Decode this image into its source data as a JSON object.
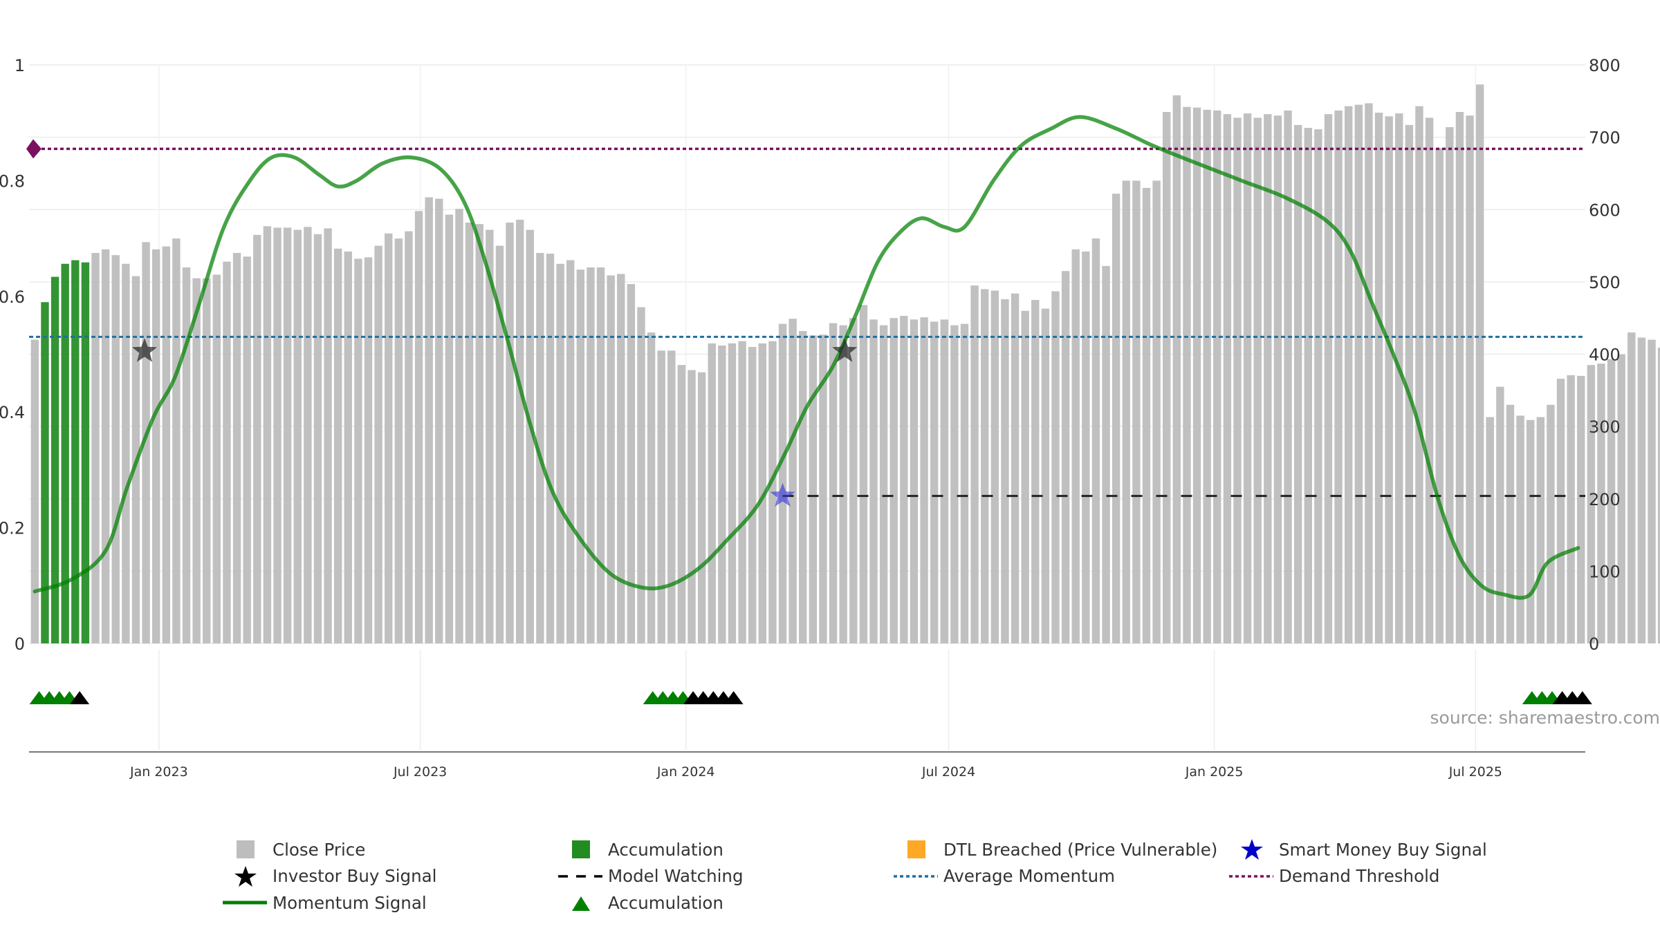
{
  "chart_data": {
    "type": "bar",
    "x_start": "2022-10-07",
    "x_interval_days": 7,
    "xlim": [
      "2022-10-03",
      "2025-09-15"
    ],
    "x_ticks": [
      "Jan 2023",
      "Jul 2023",
      "Jan 2024",
      "Jul 2024",
      "Jan 2025",
      "Jul 2025"
    ],
    "x_tick_dates": [
      "2023-01-01",
      "2023-07-01",
      "2024-01-01",
      "2024-07-01",
      "2025-01-01",
      "2025-07-01"
    ],
    "y_left": {
      "ylim": [
        0,
        1
      ],
      "ticks": [
        "0",
        "0.2",
        "0.4",
        "0.6",
        "0.8",
        "1"
      ]
    },
    "y_right": {
      "ylim": [
        0,
        800
      ],
      "ticks": [
        "0",
        "100",
        "200",
        "300",
        "400",
        "500",
        "600",
        "700",
        "800"
      ]
    },
    "grid": true,
    "close_price": [
      420,
      472,
      507,
      525,
      530,
      527,
      540,
      545,
      537,
      525,
      508,
      555,
      545,
      549,
      560,
      520,
      505,
      505,
      510,
      528,
      540,
      535,
      565,
      577,
      575,
      575,
      572,
      576,
      566,
      574,
      546,
      542,
      532,
      534,
      550,
      567,
      560,
      570,
      598,
      617,
      615,
      593,
      601,
      582,
      580,
      572,
      550,
      582,
      586,
      572,
      540,
      539,
      525,
      530,
      517,
      520,
      520,
      509,
      511,
      497,
      465,
      430,
      405,
      405,
      385,
      378,
      375,
      415,
      412,
      415,
      418,
      410,
      415,
      418,
      442,
      449,
      432,
      426,
      427,
      443,
      440,
      450,
      468,
      448,
      440,
      450,
      453,
      448,
      451,
      445,
      448,
      440,
      442,
      495,
      490,
      488,
      476,
      484,
      460,
      475,
      463,
      487,
      515,
      545,
      542,
      560,
      522,
      622,
      640,
      640,
      630,
      640,
      735,
      758,
      742,
      741,
      738,
      737,
      732,
      727,
      733,
      727,
      732,
      730,
      737,
      717,
      713,
      711,
      732,
      737,
      743,
      745,
      747,
      734,
      729,
      733,
      717,
      743,
      727,
      685,
      714,
      735,
      730,
      773,
      313,
      355,
      330,
      315,
      309,
      313,
      330,
      366,
      371,
      370,
      385,
      387,
      393,
      400,
      430,
      423,
      420,
      409,
      398,
      384,
      360
    ],
    "bar_classes": [
      "C",
      "A",
      "A",
      "A",
      "A",
      "A",
      "C",
      "C",
      "C",
      "C",
      "C",
      "C",
      "C",
      "C",
      "C",
      "C",
      "C",
      "C",
      "C",
      "C",
      "C",
      "C",
      "C",
      "C",
      "C",
      "C",
      "C",
      "C",
      "C",
      "C",
      "C",
      "C",
      "C",
      "C",
      "C",
      "C",
      "C",
      "C",
      "C",
      "C",
      "C",
      "C",
      "C",
      "C",
      "C",
      "C",
      "C",
      "C",
      "C",
      "C",
      "C",
      "C",
      "C",
      "C",
      "C",
      "C",
      "C",
      "C",
      "C",
      "C",
      "C",
      "C",
      "C",
      "C",
      "C",
      "C",
      "C",
      "C",
      "C",
      "C",
      "C",
      "C",
      "C",
      "C",
      "C",
      "C",
      "C",
      "C",
      "C",
      "C",
      "C",
      "C",
      "C",
      "C",
      "C",
      "C",
      "C",
      "C",
      "C",
      "C",
      "C",
      "C",
      "C",
      "C",
      "C",
      "C",
      "C",
      "C",
      "C",
      "C",
      "C",
      "C",
      "C",
      "C",
      "C",
      "C",
      "C",
      "C",
      "C",
      "C",
      "C",
      "C",
      "C",
      "C",
      "C",
      "C",
      "C",
      "C",
      "C",
      "C",
      "C",
      "C",
      "C",
      "C",
      "C",
      "C",
      "C",
      "C",
      "C",
      "C",
      "C",
      "C",
      "C",
      "C",
      "C",
      "C",
      "C",
      "C",
      "C",
      "C",
      "C",
      "C",
      "C",
      "C",
      "C",
      "C",
      "C",
      "C",
      "C",
      "C",
      "C",
      "C",
      "C",
      "C",
      "C",
      "C",
      "C",
      "C",
      "C",
      "C",
      "C",
      "C",
      "C",
      "C",
      "C",
      "C",
      "C",
      "C"
    ],
    "momentum_points": [
      {
        "date": "2022-10-07",
        "value": 0.09
      },
      {
        "date": "2022-11-01",
        "value": 0.11
      },
      {
        "date": "2022-11-25",
        "value": 0.16
      },
      {
        "date": "2022-12-10",
        "value": 0.27
      },
      {
        "date": "2022-12-28",
        "value": 0.39
      },
      {
        "date": "2023-01-12",
        "value": 0.46
      },
      {
        "date": "2023-01-28",
        "value": 0.58
      },
      {
        "date": "2023-02-15",
        "value": 0.72
      },
      {
        "date": "2023-03-05",
        "value": 0.8
      },
      {
        "date": "2023-03-20",
        "value": 0.84
      },
      {
        "date": "2023-04-05",
        "value": 0.84
      },
      {
        "date": "2023-04-22",
        "value": 0.81
      },
      {
        "date": "2023-05-05",
        "value": 0.79
      },
      {
        "date": "2023-05-18",
        "value": 0.8
      },
      {
        "date": "2023-06-05",
        "value": 0.83
      },
      {
        "date": "2023-06-25",
        "value": 0.84
      },
      {
        "date": "2023-07-15",
        "value": 0.82
      },
      {
        "date": "2023-08-01",
        "value": 0.76
      },
      {
        "date": "2023-08-15",
        "value": 0.66
      },
      {
        "date": "2023-08-31",
        "value": 0.52
      },
      {
        "date": "2023-09-15",
        "value": 0.38
      },
      {
        "date": "2023-10-01",
        "value": 0.26
      },
      {
        "date": "2023-10-20",
        "value": 0.18
      },
      {
        "date": "2023-11-10",
        "value": 0.12
      },
      {
        "date": "2023-12-01",
        "value": 0.097
      },
      {
        "date": "2023-12-20",
        "value": 0.1
      },
      {
        "date": "2024-01-10",
        "value": 0.13
      },
      {
        "date": "2024-01-30",
        "value": 0.18
      },
      {
        "date": "2024-02-20",
        "value": 0.24
      },
      {
        "date": "2024-03-10",
        "value": 0.33
      },
      {
        "date": "2024-03-25",
        "value": 0.41
      },
      {
        "date": "2024-04-12",
        "value": 0.48
      },
      {
        "date": "2024-04-28",
        "value": 0.57
      },
      {
        "date": "2024-05-13",
        "value": 0.66
      },
      {
        "date": "2024-05-28",
        "value": 0.71
      },
      {
        "date": "2024-06-12",
        "value": 0.735
      },
      {
        "date": "2024-06-28",
        "value": 0.72
      },
      {
        "date": "2024-07-12",
        "value": 0.72
      },
      {
        "date": "2024-08-01",
        "value": 0.8
      },
      {
        "date": "2024-08-20",
        "value": 0.86
      },
      {
        "date": "2024-09-10",
        "value": 0.89
      },
      {
        "date": "2024-09-30",
        "value": 0.91
      },
      {
        "date": "2024-10-25",
        "value": 0.89
      },
      {
        "date": "2024-11-20",
        "value": 0.86
      },
      {
        "date": "2024-12-20",
        "value": 0.83
      },
      {
        "date": "2025-01-20",
        "value": 0.8
      },
      {
        "date": "2025-02-20",
        "value": 0.77
      },
      {
        "date": "2025-03-20",
        "value": 0.73
      },
      {
        "date": "2025-04-05",
        "value": 0.68
      },
      {
        "date": "2025-04-20",
        "value": 0.59
      },
      {
        "date": "2025-05-05",
        "value": 0.5
      },
      {
        "date": "2025-05-20",
        "value": 0.4
      },
      {
        "date": "2025-06-05",
        "value": 0.25
      },
      {
        "date": "2025-06-20",
        "value": 0.15
      },
      {
        "date": "2025-07-05",
        "value": 0.1
      },
      {
        "date": "2025-07-20",
        "value": 0.085
      },
      {
        "date": "2025-08-07",
        "value": 0.083
      },
      {
        "date": "2025-08-20",
        "value": 0.14
      },
      {
        "date": "2025-09-10",
        "value": 0.165
      }
    ],
    "average_momentum": 0.53,
    "demand_threshold": 0.855,
    "model_watching": {
      "start": "2024-03-08",
      "value": 0.255
    },
    "investor_buy_signals": [
      {
        "date": "2022-12-22",
        "value": 0.505
      },
      {
        "date": "2024-04-20",
        "value": 0.505
      }
    ],
    "smart_money_buy_signals": [
      {
        "date": "2024-03-08",
        "value": 0.255
      }
    ],
    "accumulation_markers": [
      {
        "date": "2022-10-10",
        "color": "green"
      },
      {
        "date": "2022-10-17",
        "color": "green"
      },
      {
        "date": "2022-10-24",
        "color": "green"
      },
      {
        "date": "2022-10-31",
        "color": "green"
      },
      {
        "date": "2022-11-07",
        "color": "black"
      },
      {
        "date": "2023-12-09",
        "color": "green"
      },
      {
        "date": "2023-12-16",
        "color": "green"
      },
      {
        "date": "2023-12-23",
        "color": "green"
      },
      {
        "date": "2023-12-30",
        "color": "green"
      },
      {
        "date": "2024-01-06",
        "color": "black"
      },
      {
        "date": "2024-01-13",
        "color": "black"
      },
      {
        "date": "2024-01-20",
        "color": "black"
      },
      {
        "date": "2024-01-27",
        "color": "black"
      },
      {
        "date": "2024-02-03",
        "color": "black"
      },
      {
        "date": "2025-08-09",
        "color": "green"
      },
      {
        "date": "2025-08-16",
        "color": "green"
      },
      {
        "date": "2025-08-23",
        "color": "green"
      },
      {
        "date": "2025-08-30",
        "color": "black"
      },
      {
        "date": "2025-09-06",
        "color": "black"
      },
      {
        "date": "2025-09-13",
        "color": "black"
      }
    ],
    "legend": [
      {
        "label": "Close Price",
        "symbol": "square",
        "color": "#bdbdbd"
      },
      {
        "label": "Accumulation",
        "symbol": "square",
        "color": "#228b22"
      },
      {
        "label": "DTL Breached (Price Vulnerable)",
        "symbol": "square",
        "color": "#ffa726"
      },
      {
        "label": "Smart Money Buy Signal",
        "symbol": "star",
        "color": "#0000cd"
      },
      {
        "label": "Investor Buy Signal",
        "symbol": "star",
        "color": "#000000"
      },
      {
        "label": "Model Watching",
        "symbol": "dash",
        "color": "#000000"
      },
      {
        "label": "Average Momentum",
        "symbol": "dotted",
        "color": "#1f6fa3"
      },
      {
        "label": "Demand Threshold",
        "symbol": "dotted",
        "color": "#7b1060"
      },
      {
        "label": "Momentum Signal",
        "symbol": "line",
        "color": "#008000"
      },
      {
        "label": "Accumulation",
        "symbol": "triangle",
        "color": "#008000"
      }
    ],
    "colors": {
      "close": "#bdbdbd",
      "accumulation": "#228b22",
      "dtl": "#ffcc80",
      "momentum": "#008000",
      "average": "#1f6fa3",
      "demand": "#7b1060",
      "grid": "#ececec"
    }
  },
  "source_label": "source: sharemaestro.com"
}
